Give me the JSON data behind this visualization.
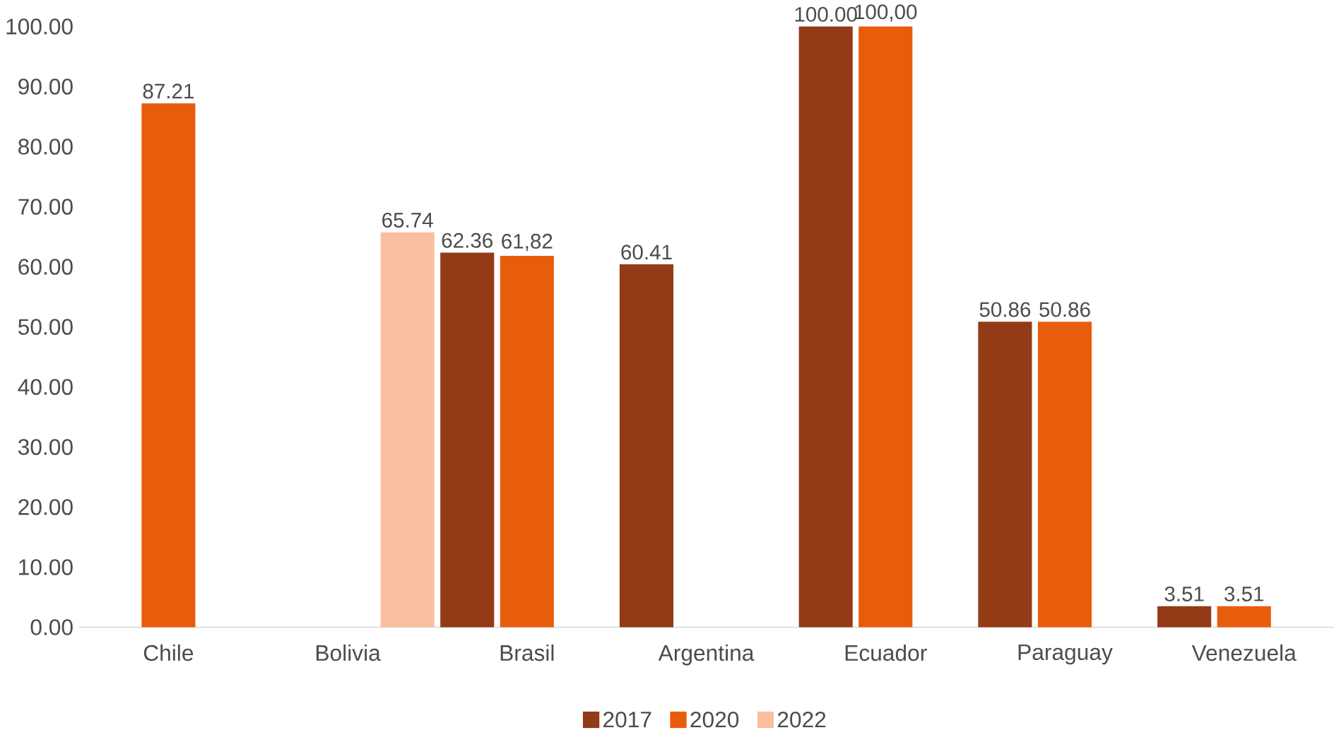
{
  "chart_data": {
    "type": "bar",
    "categories": [
      "Chile",
      "Bolivia",
      "Brasil",
      "Argentina",
      "Ecuador",
      "Paraguay",
      "Venezuela"
    ],
    "series": [
      {
        "name": "2017",
        "color": "#933a16",
        "values": [
          null,
          null,
          62.36,
          60.41,
          100,
          50.86,
          3.51
        ],
        "value_labels": [
          null,
          null,
          "62.36",
          "60.41",
          "100.00",
          "50.86",
          "3.51"
        ]
      },
      {
        "name": "2020",
        "color": "#e85d0c",
        "values": [
          87.21,
          null,
          61.82,
          null,
          100,
          50.86,
          3.51
        ],
        "value_labels": [
          "87.21",
          null,
          "61,82",
          null,
          "100,00",
          "50.86",
          "3.51"
        ]
      },
      {
        "name": "2022",
        "color": "#f8c0a0",
        "values": [
          null,
          65.74,
          null,
          null,
          null,
          null,
          null
        ],
        "value_labels": [
          null,
          "65.74",
          null,
          null,
          null,
          null,
          null
        ]
      }
    ],
    "ylim": [
      0,
      100
    ],
    "yticks": [
      {
        "value": 0,
        "label": "0.00"
      },
      {
        "value": 10,
        "label": "10.00"
      },
      {
        "value": 20,
        "label": "20.00"
      },
      {
        "value": 30,
        "label": "30.00"
      },
      {
        "value": 40,
        "label": "40.00"
      },
      {
        "value": 50,
        "label": "50.00"
      },
      {
        "value": 60,
        "label": "60.00"
      },
      {
        "value": 70,
        "label": "70.00"
      },
      {
        "value": 80,
        "label": "80.00"
      },
      {
        "value": 90,
        "label": "90.00"
      },
      {
        "value": 100,
        "label": "100.00"
      }
    ],
    "legend": "bottom"
  }
}
